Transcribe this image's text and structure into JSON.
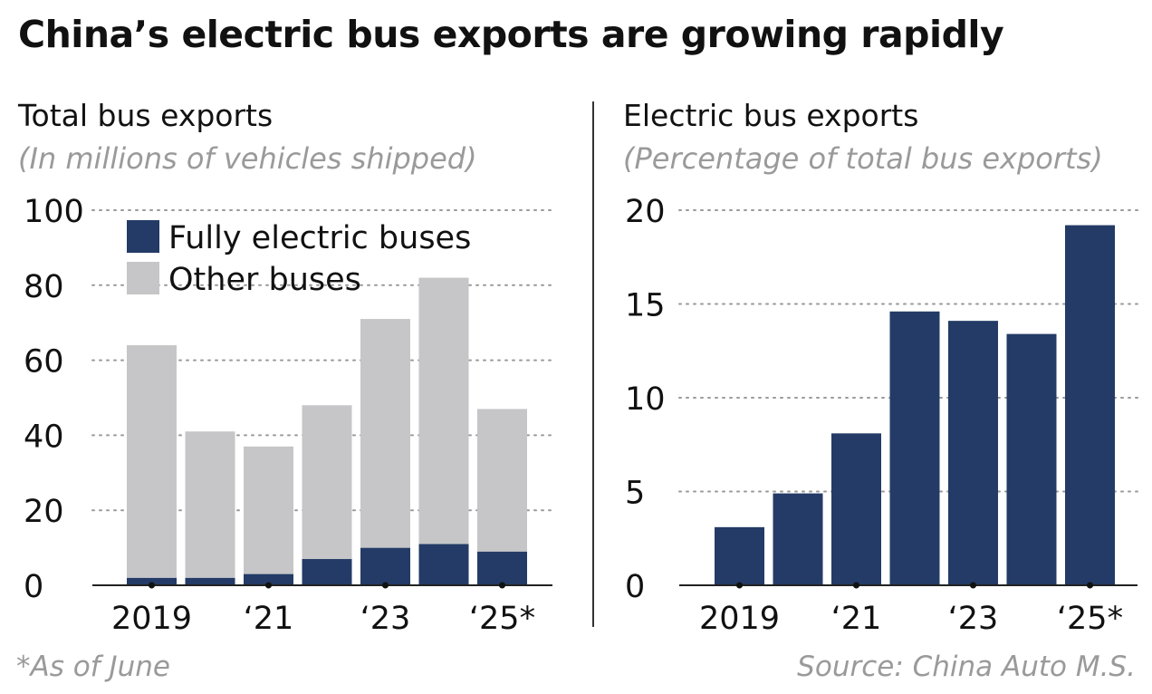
{
  "title": "China’s electric bus exports are growing rapidly",
  "footnote": "*As of June",
  "source": "Source: China Auto M.S.",
  "colors": {
    "electric": "#233b66",
    "other": "#c6c6c8",
    "grid": "#9a9a9a",
    "axis": "#222222"
  },
  "chart_data": [
    {
      "type": "bar",
      "stacked": true,
      "title": "Total bus exports",
      "subtitle": "(In millions of vehicles shipped)",
      "categories": [
        "2019",
        "2020",
        "2021",
        "2022",
        "2023",
        "2024",
        "2025*"
      ],
      "tick_labels": [
        "2019",
        "",
        "‘21",
        "",
        "‘23",
        "",
        "‘25*"
      ],
      "y_ticks": [
        0,
        20,
        40,
        60,
        80,
        100
      ],
      "ylim": [
        0,
        100
      ],
      "grid": true,
      "legend_position": "top-left",
      "series": [
        {
          "name": "Fully electric buses",
          "values": [
            2,
            2,
            3,
            7,
            10,
            11,
            9
          ]
        },
        {
          "name": "Other buses",
          "values": [
            62,
            39,
            34,
            41,
            61,
            71,
            38
          ]
        }
      ],
      "totals": [
        64,
        41,
        37,
        48,
        71,
        82,
        47
      ]
    },
    {
      "type": "bar",
      "title": "Electric bus exports",
      "subtitle": "(Percentage of total bus exports)",
      "categories": [
        "2019",
        "2020",
        "2021",
        "2022",
        "2023",
        "2024",
        "2025*"
      ],
      "tick_labels": [
        "2019",
        "",
        "‘21",
        "",
        "‘23",
        "",
        "‘25*"
      ],
      "y_ticks": [
        0,
        5,
        10,
        15,
        20
      ],
      "ylim": [
        0,
        20
      ],
      "grid": true,
      "values": [
        3.1,
        4.9,
        8.1,
        14.6,
        14.1,
        13.4,
        19.2
      ]
    }
  ]
}
